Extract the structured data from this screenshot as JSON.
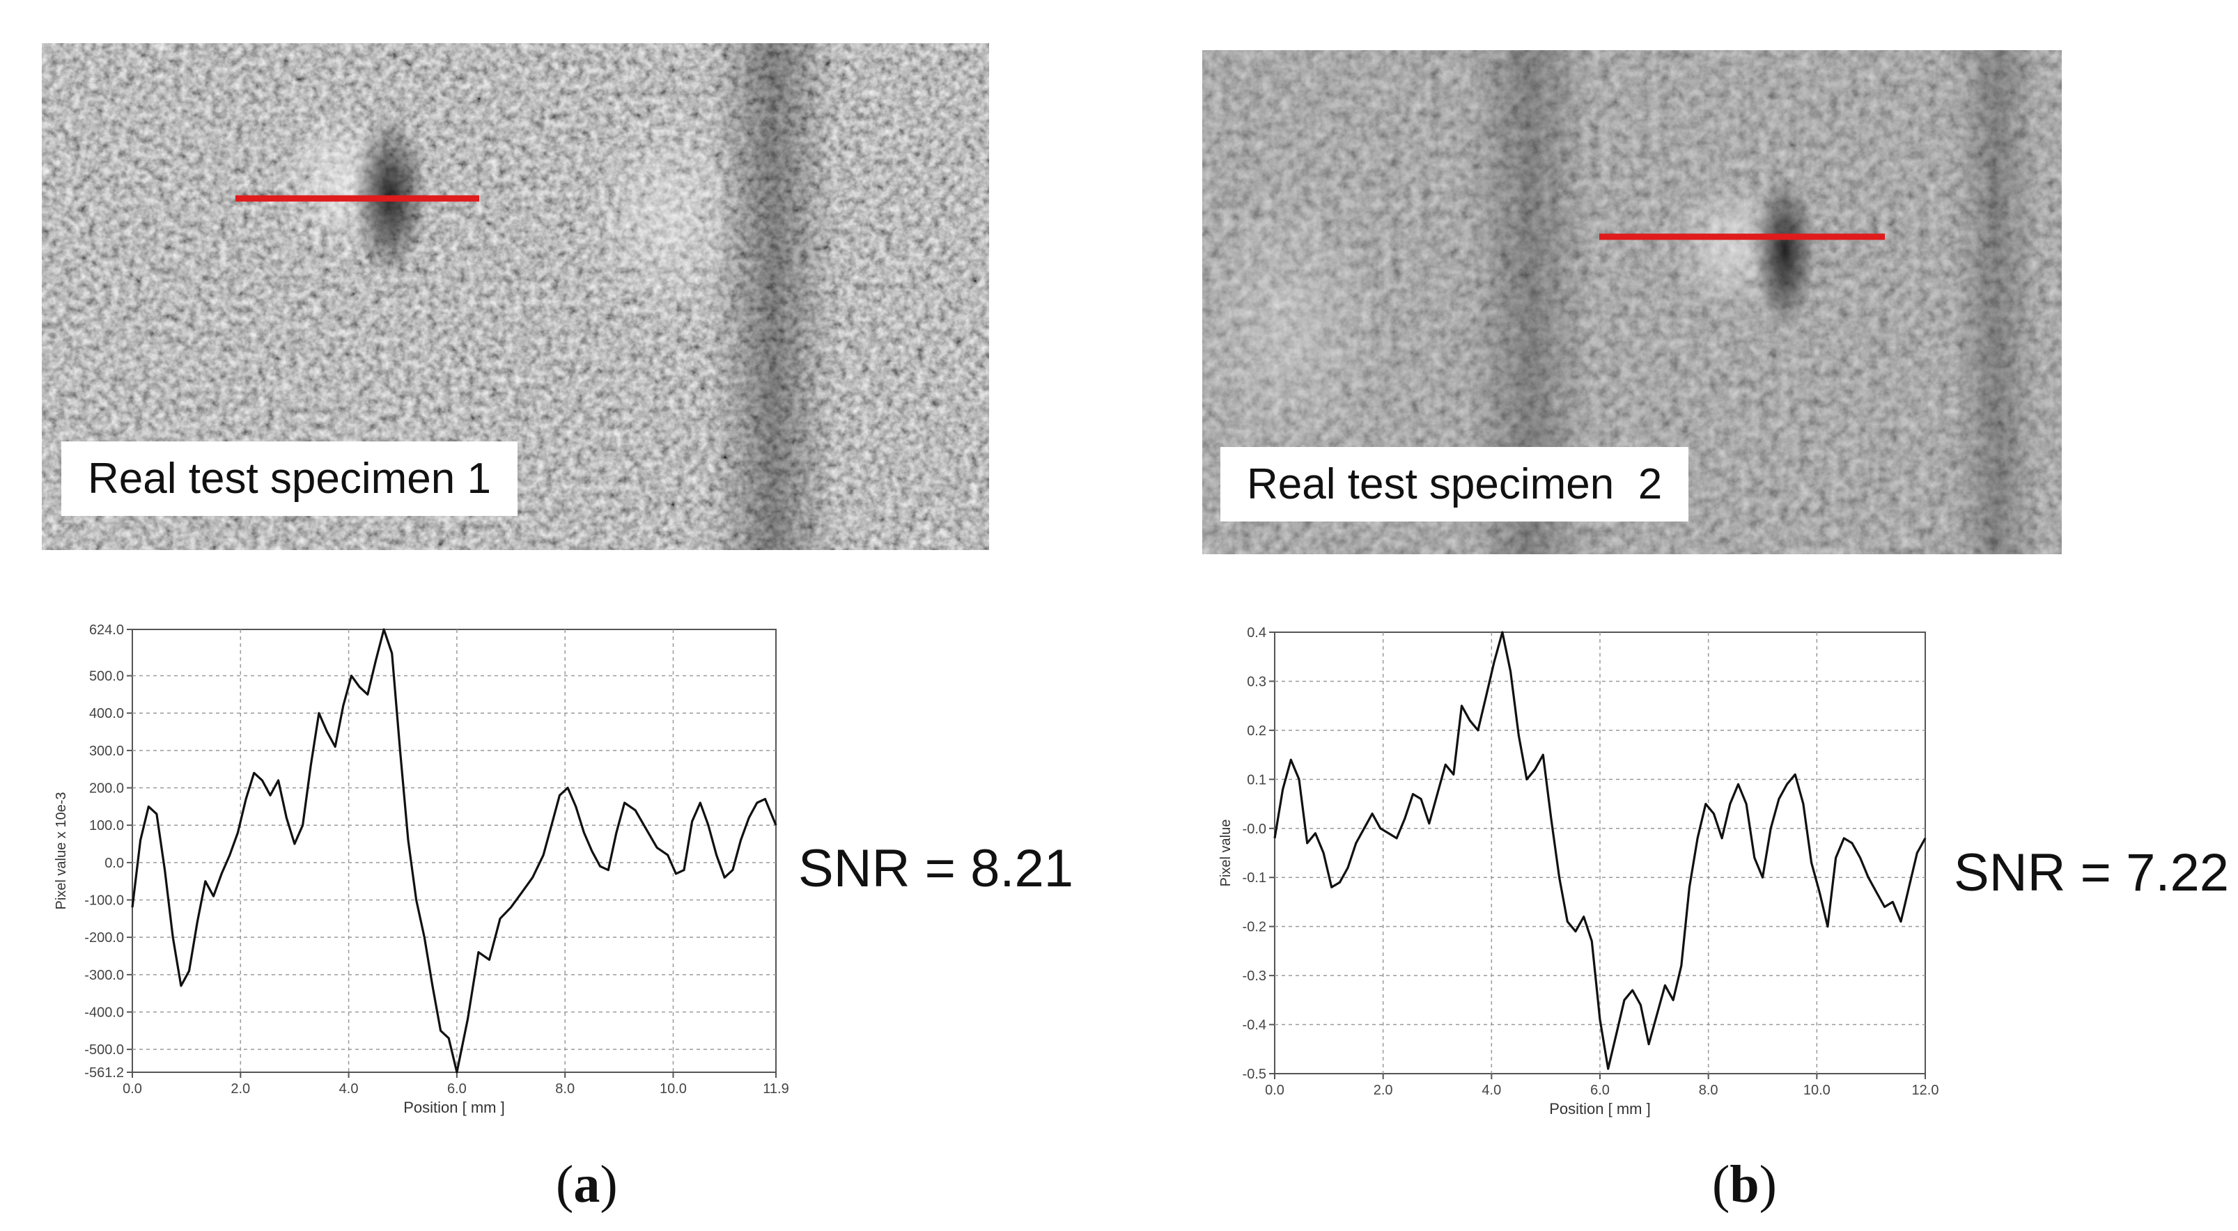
{
  "panels": [
    {
      "specimen_label": "Real test specimen 1",
      "snr_text": "SNR = 8.21",
      "caption": {
        "open": "(",
        "letter": "a",
        "close": ")"
      },
      "line_color": "#e01b1b"
    },
    {
      "specimen_label": "Real test specimen  2",
      "snr_text": "SNR = 7.22",
      "caption": {
        "open": "(",
        "letter": "b",
        "close": ")"
      },
      "line_color": "#e01b1b"
    }
  ],
  "chart_data": [
    {
      "type": "line",
      "xlabel": "Position [ mm ]",
      "ylabel": "Pixel value x 10e-3",
      "xlim": [
        0.0,
        11.9
      ],
      "ylim": [
        -561.2,
        624.0
      ],
      "x_ticks": [
        "0.0",
        "2.0",
        "4.0",
        "6.0",
        "8.0",
        "10.0",
        "11.9"
      ],
      "x_tick_values": [
        0.0,
        2.0,
        4.0,
        6.0,
        8.0,
        10.0,
        11.9
      ],
      "y_ticks": [
        "624.0",
        "500.0",
        "400.0",
        "300.0",
        "200.0",
        "100.0",
        "0.0",
        "-100.0",
        "-200.0",
        "-300.0",
        "-400.0",
        "-500.0",
        "-561.2"
      ],
      "y_tick_values": [
        624.0,
        500.0,
        400.0,
        300.0,
        200.0,
        100.0,
        0.0,
        -100.0,
        -200.0,
        -300.0,
        -400.0,
        -500.0,
        -561.2
      ],
      "grid": true,
      "series": [
        {
          "x": [
            0.0,
            0.15,
            0.3,
            0.45,
            0.6,
            0.75,
            0.9,
            1.05,
            1.2,
            1.35,
            1.5,
            1.65,
            1.8,
            1.95,
            2.1,
            2.25,
            2.4,
            2.55,
            2.7,
            2.85,
            3.0,
            3.15,
            3.3,
            3.45,
            3.6,
            3.75,
            3.9,
            4.05,
            4.2,
            4.35,
            4.5,
            4.65,
            4.8,
            4.95,
            5.1,
            5.25,
            5.4,
            5.55,
            5.7,
            5.85,
            6.0,
            6.2,
            6.4,
            6.6,
            6.8,
            7.0,
            7.2,
            7.4,
            7.6,
            7.75,
            7.9,
            8.05,
            8.2,
            8.35,
            8.5,
            8.65,
            8.8,
            8.95,
            9.1,
            9.3,
            9.5,
            9.7,
            9.9,
            10.05,
            10.2,
            10.35,
            10.5,
            10.65,
            10.8,
            10.95,
            11.1,
            11.25,
            11.4,
            11.55,
            11.7,
            11.9
          ],
          "y": [
            -120,
            60,
            150,
            130,
            -20,
            -200,
            -330,
            -290,
            -160,
            -50,
            -90,
            -30,
            20,
            80,
            170,
            240,
            220,
            180,
            220,
            120,
            50,
            100,
            260,
            400,
            350,
            310,
            420,
            500,
            470,
            450,
            540,
            624,
            560,
            300,
            60,
            -100,
            -200,
            -330,
            -450,
            -470,
            -561,
            -420,
            -240,
            -260,
            -150,
            -120,
            -80,
            -40,
            20,
            100,
            180,
            200,
            150,
            80,
            30,
            -10,
            -20,
            80,
            160,
            140,
            90,
            40,
            20,
            -30,
            -20,
            110,
            160,
            100,
            20,
            -40,
            -20,
            60,
            120,
            160,
            170,
            100
          ]
        }
      ]
    },
    {
      "type": "line",
      "xlabel": "Position [ mm ]",
      "ylabel": "Pixel value",
      "xlim": [
        0.0,
        12.0
      ],
      "ylim": [
        -0.5,
        0.4
      ],
      "x_ticks": [
        "0.0",
        "2.0",
        "4.0",
        "6.0",
        "8.0",
        "10.0",
        "12.0"
      ],
      "x_tick_values": [
        0.0,
        2.0,
        4.0,
        6.0,
        8.0,
        10.0,
        12.0
      ],
      "y_ticks": [
        "0.4",
        "0.3",
        "0.2",
        "0.1",
        "-0.0",
        "-0.1",
        "-0.2",
        "-0.3",
        "-0.4",
        "-0.5"
      ],
      "y_tick_values": [
        0.4,
        0.3,
        0.2,
        0.1,
        0.0,
        -0.1,
        -0.2,
        -0.3,
        -0.4,
        -0.5
      ],
      "grid": true,
      "series": [
        {
          "x": [
            0.0,
            0.15,
            0.3,
            0.45,
            0.6,
            0.75,
            0.9,
            1.05,
            1.2,
            1.35,
            1.5,
            1.65,
            1.8,
            1.95,
            2.1,
            2.25,
            2.4,
            2.55,
            2.7,
            2.85,
            3.0,
            3.15,
            3.3,
            3.45,
            3.6,
            3.75,
            3.9,
            4.05,
            4.2,
            4.35,
            4.5,
            4.65,
            4.8,
            4.95,
            5.1,
            5.25,
            5.4,
            5.55,
            5.7,
            5.85,
            6.0,
            6.15,
            6.3,
            6.45,
            6.6,
            6.75,
            6.9,
            7.05,
            7.2,
            7.35,
            7.5,
            7.65,
            7.8,
            7.95,
            8.1,
            8.25,
            8.4,
            8.55,
            8.7,
            8.85,
            9.0,
            9.15,
            9.3,
            9.45,
            9.6,
            9.75,
            9.9,
            10.05,
            10.2,
            10.35,
            10.5,
            10.65,
            10.8,
            10.95,
            11.1,
            11.25,
            11.4,
            11.55,
            11.7,
            11.85,
            12.0
          ],
          "y": [
            -0.02,
            0.08,
            0.14,
            0.1,
            -0.03,
            -0.01,
            -0.05,
            -0.12,
            -0.11,
            -0.08,
            -0.03,
            0.0,
            0.03,
            0.0,
            -0.01,
            -0.02,
            0.02,
            0.07,
            0.06,
            0.01,
            0.07,
            0.13,
            0.11,
            0.25,
            0.22,
            0.2,
            0.27,
            0.34,
            0.4,
            0.32,
            0.19,
            0.1,
            0.12,
            0.15,
            0.02,
            -0.1,
            -0.19,
            -0.21,
            -0.18,
            -0.23,
            -0.39,
            -0.49,
            -0.42,
            -0.35,
            -0.33,
            -0.36,
            -0.44,
            -0.38,
            -0.32,
            -0.35,
            -0.28,
            -0.12,
            -0.02,
            0.05,
            0.03,
            -0.02,
            0.05,
            0.09,
            0.05,
            -0.06,
            -0.1,
            0.0,
            0.06,
            0.09,
            0.11,
            0.05,
            -0.07,
            -0.13,
            -0.2,
            -0.06,
            -0.02,
            -0.03,
            -0.06,
            -0.1,
            -0.13,
            -0.16,
            -0.15,
            -0.19,
            -0.12,
            -0.05,
            -0.02
          ]
        }
      ]
    }
  ]
}
